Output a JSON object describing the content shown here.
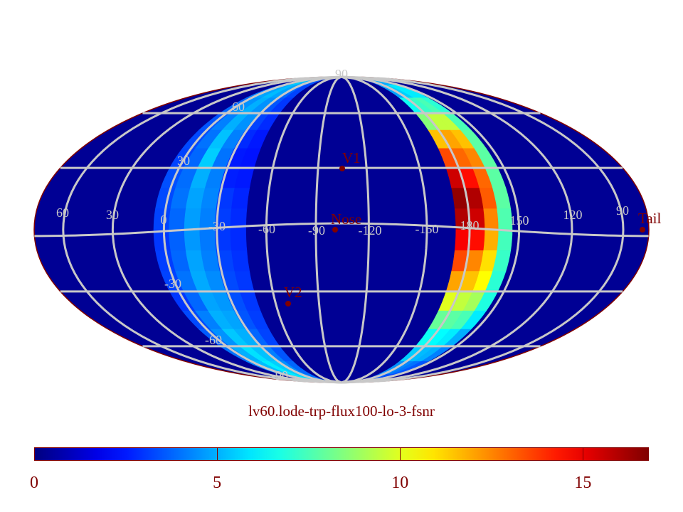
{
  "chart_data": {
    "type": "heatmap",
    "projection": "mollweide",
    "title": "lv60.lode-trp-flux100-lo-3-fsnr",
    "colormap": "jet",
    "color_range": [
      0,
      16.8
    ],
    "colorbar": {
      "ticks": [
        0,
        5,
        10,
        15
      ],
      "tick_labels": [
        "0",
        "5",
        "10",
        "15"
      ],
      "placement": "bottom"
    },
    "background_value": 0,
    "grid": true,
    "grid_color": "#c8c8c8",
    "label_color": "#800000",
    "longitude_labels": [
      "60",
      "30",
      "0",
      "-30",
      "-60",
      "-90",
      "-120",
      "-150",
      "180",
      "150",
      "120",
      "90"
    ],
    "latitude_labels": [
      "90",
      "60",
      "30",
      "-30",
      "-60",
      "-90"
    ],
    "latitude_zero_label": "0",
    "markers": [
      {
        "name": "V1",
        "lon": -90,
        "lat": 35
      },
      {
        "name": "Nose",
        "lon": -100,
        "lat": 0
      },
      {
        "name": "V2",
        "lon": -70,
        "lat": -32
      },
      {
        "name": "Tail",
        "lon": 80,
        "lat": 0
      }
    ],
    "lat_bins": [
      85,
      75,
      65,
      55,
      45,
      35,
      25,
      15,
      5,
      -5,
      -15,
      -25,
      -35,
      -45,
      -55,
      -65,
      -75,
      -85
    ],
    "bands": [
      {
        "lon_edges": [
          -110,
          -101,
          -92,
          -83,
          -74,
          -65,
          -56
        ],
        "values": [
          [
            4.5,
            5.0,
            5.5,
            5.0,
            4.0,
            3.5
          ],
          [
            4.2,
            4.8,
            5.2,
            4.8,
            3.8,
            3.2
          ],
          [
            3.8,
            4.5,
            5.0,
            4.5,
            3.5,
            3.0
          ],
          [
            3.5,
            4.2,
            5.0,
            4.5,
            3.2,
            2.8
          ],
          [
            3.3,
            4.0,
            5.3,
            4.2,
            2.8,
            2.5
          ],
          [
            3.2,
            3.8,
            5.5,
            4.0,
            2.5,
            2.4
          ],
          [
            3.4,
            3.9,
            5.0,
            4.2,
            2.6,
            2.5
          ],
          [
            3.3,
            4.0,
            4.8,
            4.3,
            3.0,
            2.7
          ],
          [
            3.2,
            3.8,
            4.7,
            4.2,
            3.1,
            2.8
          ],
          [
            3.0,
            3.7,
            4.6,
            4.1,
            3.0,
            2.8
          ],
          [
            3.1,
            3.8,
            4.8,
            4.2,
            3.2,
            2.9
          ],
          [
            3.2,
            4.0,
            4.9,
            4.4,
            3.3,
            3.0
          ],
          [
            3.0,
            3.8,
            4.8,
            4.6,
            3.4,
            3.0
          ],
          [
            3.3,
            4.2,
            5.0,
            4.8,
            3.5,
            3.1
          ],
          [
            3.6,
            4.5,
            5.4,
            5.0,
            3.8,
            3.2
          ],
          [
            4.0,
            5.0,
            5.8,
            5.3,
            4.2,
            3.5
          ],
          [
            4.3,
            5.2,
            6.0,
            5.5,
            4.5,
            3.8
          ],
          [
            4.5,
            5.4,
            6.0,
            5.5,
            4.8,
            4.0
          ]
        ]
      },
      {
        "lon_edges": [
          67,
          75.5,
          84,
          92,
          100
        ],
        "values": [
          [
            4.0,
            4.5,
            5.0,
            5.0
          ],
          [
            4.8,
            5.5,
            6.0,
            6.0
          ],
          [
            6.5,
            7.2,
            7.5,
            7.0
          ],
          [
            8.5,
            9.5,
            9.5,
            7.5
          ],
          [
            11.5,
            12.0,
            11.5,
            7.8
          ],
          [
            13.5,
            13.0,
            12.5,
            7.8
          ],
          [
            15.5,
            14.5,
            13.0,
            7.8
          ],
          [
            16.5,
            16.0,
            13.2,
            7.8
          ],
          [
            16.0,
            15.5,
            12.5,
            7.6
          ],
          [
            14.8,
            14.5,
            11.8,
            7.4
          ],
          [
            13.5,
            12.5,
            11.0,
            7.2
          ],
          [
            12.0,
            11.5,
            10.5,
            7.0
          ],
          [
            10.0,
            9.5,
            9.0,
            6.8
          ],
          [
            8.0,
            7.8,
            7.5,
            6.0
          ],
          [
            6.5,
            6.3,
            6.0,
            5.0
          ],
          [
            5.5,
            5.2,
            5.0,
            4.2
          ],
          [
            4.5,
            4.3,
            4.0,
            3.5
          ],
          [
            3.8,
            3.6,
            3.5,
            3.2
          ]
        ]
      }
    ]
  }
}
